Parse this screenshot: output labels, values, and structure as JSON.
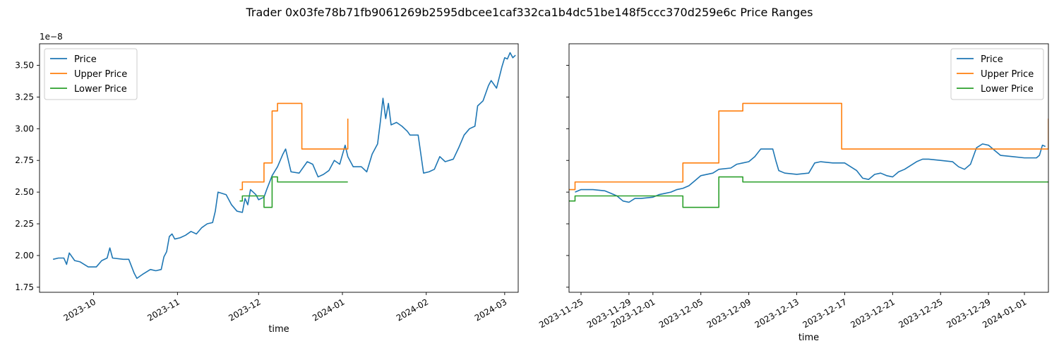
{
  "figure": {
    "title": "Trader 0x03fe78b71fb9061269b2595dbcee1caf332ca1b4dc51be148f5ccc370d259e6c Price Ranges"
  },
  "colors": {
    "price": "#1f77b4",
    "upper": "#ff7f0e",
    "lower": "#2ca02c"
  },
  "chart_data": [
    {
      "type": "line",
      "xlabel": "time",
      "ylabel": "",
      "y_scale_note": "1e−8",
      "xlim": [
        "2023-09-11",
        "2024-03-06"
      ],
      "ylim": [
        1.71,
        3.67
      ],
      "x_ticks": [
        "2023-10-01",
        "2023-11-01",
        "2023-12-01",
        "2024-01-01",
        "2024-02-01",
        "2024-03-01"
      ],
      "x_tick_labels": [
        "2023-10",
        "2023-11",
        "2023-12",
        "2024-01",
        "2024-02",
        "2024-03"
      ],
      "y_ticks": [
        1.75,
        2.0,
        2.25,
        2.5,
        2.75,
        3.0,
        3.25,
        3.5
      ],
      "y_tick_labels": [
        "1.75",
        "2.00",
        "2.25",
        "2.50",
        "2.75",
        "3.00",
        "3.25",
        "3.50"
      ],
      "legend": {
        "location": "upper-left",
        "entries": [
          "Price",
          "Upper Price",
          "Lower Price"
        ]
      },
      "series": [
        {
          "name": "Price",
          "points": [
            [
              "2023-09-16",
              1.97
            ],
            [
              "2023-09-18",
              1.98
            ],
            [
              "2023-09-20",
              1.98
            ],
            [
              "2023-09-21",
              1.93
            ],
            [
              "2023-09-22",
              2.02
            ],
            [
              "2023-09-24",
              1.96
            ],
            [
              "2023-09-26",
              1.95
            ],
            [
              "2023-09-29",
              1.91
            ],
            [
              "2023-10-02",
              1.91
            ],
            [
              "2023-10-04",
              1.96
            ],
            [
              "2023-10-06",
              1.98
            ],
            [
              "2023-10-07",
              2.06
            ],
            [
              "2023-10-08",
              1.98
            ],
            [
              "2023-10-12",
              1.97
            ],
            [
              "2023-10-14",
              1.97
            ],
            [
              "2023-10-16",
              1.86
            ],
            [
              "2023-10-17",
              1.82
            ],
            [
              "2023-10-19",
              1.85
            ],
            [
              "2023-10-22",
              1.89
            ],
            [
              "2023-10-24",
              1.88
            ],
            [
              "2023-10-26",
              1.89
            ],
            [
              "2023-10-27",
              1.99
            ],
            [
              "2023-10-28",
              2.03
            ],
            [
              "2023-10-29",
              2.15
            ],
            [
              "2023-10-30",
              2.17
            ],
            [
              "2023-10-31",
              2.13
            ],
            [
              "2023-11-02",
              2.14
            ],
            [
              "2023-11-04",
              2.16
            ],
            [
              "2023-11-06",
              2.19
            ],
            [
              "2023-11-08",
              2.17
            ],
            [
              "2023-11-10",
              2.22
            ],
            [
              "2023-11-12",
              2.25
            ],
            [
              "2023-11-14",
              2.26
            ],
            [
              "2023-11-15",
              2.35
            ],
            [
              "2023-11-16",
              2.5
            ],
            [
              "2023-11-19",
              2.48
            ],
            [
              "2023-11-21",
              2.4
            ],
            [
              "2023-11-23",
              2.35
            ],
            [
              "2023-11-25",
              2.34
            ],
            [
              "2023-11-26",
              2.45
            ],
            [
              "2023-11-27",
              2.4
            ],
            [
              "2023-11-28",
              2.52
            ],
            [
              "2023-11-30",
              2.48
            ],
            [
              "2023-12-01",
              2.44
            ],
            [
              "2023-12-03",
              2.46
            ],
            [
              "2023-12-04",
              2.52
            ],
            [
              "2023-12-06",
              2.63
            ],
            [
              "2023-12-08",
              2.7
            ],
            [
              "2023-12-10",
              2.8
            ],
            [
              "2023-12-11",
              2.84
            ],
            [
              "2023-12-13",
              2.66
            ],
            [
              "2023-12-16",
              2.65
            ],
            [
              "2023-12-19",
              2.74
            ],
            [
              "2023-12-21",
              2.72
            ],
            [
              "2023-12-23",
              2.62
            ],
            [
              "2023-12-25",
              2.64
            ],
            [
              "2023-12-27",
              2.67
            ],
            [
              "2023-12-29",
              2.75
            ],
            [
              "2023-12-31",
              2.72
            ],
            [
              "2024-01-02",
              2.87
            ],
            [
              "2024-01-03",
              2.78
            ],
            [
              "2024-01-05",
              2.7
            ],
            [
              "2024-01-08",
              2.7
            ],
            [
              "2024-01-10",
              2.66
            ],
            [
              "2024-01-12",
              2.8
            ],
            [
              "2024-01-14",
              2.88
            ],
            [
              "2024-01-15",
              3.05
            ],
            [
              "2024-01-16",
              3.24
            ],
            [
              "2024-01-17",
              3.08
            ],
            [
              "2024-01-18",
              3.2
            ],
            [
              "2024-01-19",
              3.03
            ],
            [
              "2024-01-21",
              3.05
            ],
            [
              "2024-01-23",
              3.02
            ],
            [
              "2024-01-25",
              2.98
            ],
            [
              "2024-01-26",
              2.95
            ],
            [
              "2024-01-29",
              2.95
            ],
            [
              "2024-01-31",
              2.65
            ],
            [
              "2024-02-02",
              2.66
            ],
            [
              "2024-02-04",
              2.68
            ],
            [
              "2024-02-06",
              2.78
            ],
            [
              "2024-02-08",
              2.74
            ],
            [
              "2024-02-11",
              2.76
            ],
            [
              "2024-02-13",
              2.85
            ],
            [
              "2024-02-15",
              2.95
            ],
            [
              "2024-02-17",
              3.0
            ],
            [
              "2024-02-19",
              3.02
            ],
            [
              "2024-02-20",
              3.18
            ],
            [
              "2024-02-22",
              3.22
            ],
            [
              "2024-02-24",
              3.34
            ],
            [
              "2024-02-25",
              3.38
            ],
            [
              "2024-02-27",
              3.32
            ],
            [
              "2024-02-29",
              3.49
            ],
            [
              "2024-03-01",
              3.56
            ],
            [
              "2024-03-02",
              3.55
            ],
            [
              "2024-03-03",
              3.6
            ],
            [
              "2024-03-04",
              3.56
            ],
            [
              "2024-03-05",
              3.58
            ]
          ]
        },
        {
          "name": "Upper Price",
          "points": [
            [
              "2023-11-24",
              2.52
            ],
            [
              "2023-11-25",
              2.52
            ],
            [
              "2023-11-25",
              2.58
            ],
            [
              "2023-12-03",
              2.58
            ],
            [
              "2023-12-03",
              2.73
            ],
            [
              "2023-12-06",
              2.73
            ],
            [
              "2023-12-06",
              3.14
            ],
            [
              "2023-12-08",
              3.14
            ],
            [
              "2023-12-08",
              3.2
            ],
            [
              "2023-12-17",
              3.2
            ],
            [
              "2023-12-17",
              2.84
            ],
            [
              "2024-01-03",
              2.84
            ],
            [
              "2024-01-03",
              3.08
            ]
          ]
        },
        {
          "name": "Lower Price",
          "points": [
            [
              "2023-11-24",
              2.43
            ],
            [
              "2023-11-25",
              2.43
            ],
            [
              "2023-11-25",
              2.47
            ],
            [
              "2023-12-03",
              2.47
            ],
            [
              "2023-12-03",
              2.38
            ],
            [
              "2023-12-06",
              2.38
            ],
            [
              "2023-12-06",
              2.62
            ],
            [
              "2023-12-08",
              2.62
            ],
            [
              "2023-12-08",
              2.58
            ],
            [
              "2024-01-03",
              2.58
            ]
          ]
        }
      ]
    },
    {
      "type": "line",
      "xlabel": "time",
      "ylabel": "",
      "xlim": [
        "2023-11-24",
        "2024-01-03"
      ],
      "ylim": [
        1.71,
        3.67
      ],
      "shared_y": true,
      "x_ticks": [
        "2023-11-25",
        "2023-11-29",
        "2023-12-01",
        "2023-12-05",
        "2023-12-09",
        "2023-12-13",
        "2023-12-17",
        "2023-12-21",
        "2023-12-25",
        "2023-12-29",
        "2024-01-01"
      ],
      "x_tick_labels": [
        "2023-11-25",
        "2023-11-29",
        "2023-12-01",
        "2023-12-05",
        "2023-12-09",
        "2023-12-13",
        "2023-12-17",
        "2023-12-21",
        "2023-12-25",
        "2023-12-29",
        "2024-01-01"
      ],
      "legend": {
        "location": "upper-right",
        "entries": [
          "Price",
          "Upper Price",
          "Lower Price"
        ]
      },
      "series": [
        {
          "name": "Price",
          "points": [
            [
              "2023-11-24 12:00",
              2.5
            ],
            [
              "2023-11-25 00:00",
              2.52
            ],
            [
              "2023-11-26 00:00",
              2.52
            ],
            [
              "2023-11-27 00:00",
              2.51
            ],
            [
              "2023-11-27 12:00",
              2.49
            ],
            [
              "2023-11-28 00:00",
              2.47
            ],
            [
              "2023-11-28 12:00",
              2.43
            ],
            [
              "2023-11-29 00:00",
              2.42
            ],
            [
              "2023-11-29 12:00",
              2.45
            ],
            [
              "2023-11-30 00:00",
              2.45
            ],
            [
              "2023-12-01 00:00",
              2.46
            ],
            [
              "2023-12-01 12:00",
              2.48
            ],
            [
              "2023-12-02 00:00",
              2.49
            ],
            [
              "2023-12-02 12:00",
              2.5
            ],
            [
              "2023-12-03 00:00",
              2.52
            ],
            [
              "2023-12-03 12:00",
              2.53
            ],
            [
              "2023-12-04 00:00",
              2.55
            ],
            [
              "2023-12-04 12:00",
              2.59
            ],
            [
              "2023-12-05 00:00",
              2.63
            ],
            [
              "2023-12-06 00:00",
              2.65
            ],
            [
              "2023-12-06 12:00",
              2.68
            ],
            [
              "2023-12-07 12:00",
              2.69
            ],
            [
              "2023-12-08 00:00",
              2.72
            ],
            [
              "2023-12-08 12:00",
              2.73
            ],
            [
              "2023-12-09 00:00",
              2.74
            ],
            [
              "2023-12-09 12:00",
              2.78
            ],
            [
              "2023-12-10 00:00",
              2.84
            ],
            [
              "2023-12-11 00:00",
              2.84
            ],
            [
              "2023-12-11 06:00",
              2.75
            ],
            [
              "2023-12-11 12:00",
              2.67
            ],
            [
              "2023-12-12 00:00",
              2.65
            ],
            [
              "2023-12-13 00:00",
              2.64
            ],
            [
              "2023-12-14 00:00",
              2.65
            ],
            [
              "2023-12-14 12:00",
              2.73
            ],
            [
              "2023-12-15 00:00",
              2.74
            ],
            [
              "2023-12-16 00:00",
              2.73
            ],
            [
              "2023-12-17 00:00",
              2.73
            ],
            [
              "2023-12-17 12:00",
              2.7
            ],
            [
              "2023-12-18 00:00",
              2.67
            ],
            [
              "2023-12-18 12:00",
              2.61
            ],
            [
              "2023-12-19 00:00",
              2.6
            ],
            [
              "2023-12-19 12:00",
              2.64
            ],
            [
              "2023-12-20 00:00",
              2.65
            ],
            [
              "2023-12-20 12:00",
              2.63
            ],
            [
              "2023-12-21 00:00",
              2.62
            ],
            [
              "2023-12-21 12:00",
              2.66
            ],
            [
              "2023-12-22 00:00",
              2.68
            ],
            [
              "2023-12-22 12:00",
              2.71
            ],
            [
              "2023-12-23 00:00",
              2.74
            ],
            [
              "2023-12-23 12:00",
              2.76
            ],
            [
              "2023-12-24 00:00",
              2.76
            ],
            [
              "2023-12-25 00:00",
              2.75
            ],
            [
              "2023-12-26 00:00",
              2.74
            ],
            [
              "2023-12-26 12:00",
              2.7
            ],
            [
              "2023-12-27 00:00",
              2.68
            ],
            [
              "2023-12-27 12:00",
              2.72
            ],
            [
              "2023-12-28 00:00",
              2.85
            ],
            [
              "2023-12-28 12:00",
              2.88
            ],
            [
              "2023-12-29 00:00",
              2.87
            ],
            [
              "2023-12-29 12:00",
              2.83
            ],
            [
              "2023-12-30 00:00",
              2.79
            ],
            [
              "2023-12-31 00:00",
              2.78
            ],
            [
              "2024-01-01 00:00",
              2.77
            ],
            [
              "2024-01-02 00:00",
              2.77
            ],
            [
              "2024-01-02 06:00",
              2.79
            ],
            [
              "2024-01-02 12:00",
              2.87
            ],
            [
              "2024-01-02 18:00",
              2.86
            ]
          ]
        },
        {
          "name": "Upper Price",
          "points": [
            [
              "2023-11-24 00:00",
              2.52
            ],
            [
              "2023-11-24 12:00",
              2.52
            ],
            [
              "2023-11-24 12:00",
              2.58
            ],
            [
              "2023-12-03 12:00",
              2.58
            ],
            [
              "2023-12-03 12:00",
              2.73
            ],
            [
              "2023-12-06 12:00",
              2.73
            ],
            [
              "2023-12-06 12:00",
              3.14
            ],
            [
              "2023-12-08 12:00",
              3.14
            ],
            [
              "2023-12-08 12:00",
              3.2
            ],
            [
              "2023-12-16 18:00",
              3.2
            ],
            [
              "2023-12-16 18:00",
              2.84
            ],
            [
              "2024-01-03 00:00",
              2.84
            ],
            [
              "2024-01-03 00:00",
              3.08
            ]
          ]
        },
        {
          "name": "Lower Price",
          "points": [
            [
              "2023-11-24 00:00",
              2.43
            ],
            [
              "2023-11-24 12:00",
              2.43
            ],
            [
              "2023-11-24 12:00",
              2.47
            ],
            [
              "2023-12-03 12:00",
              2.47
            ],
            [
              "2023-12-03 12:00",
              2.38
            ],
            [
              "2023-12-06 12:00",
              2.38
            ],
            [
              "2023-12-06 12:00",
              2.62
            ],
            [
              "2023-12-08 12:00",
              2.62
            ],
            [
              "2023-12-08 12:00",
              2.58
            ],
            [
              "2024-01-03 00:00",
              2.58
            ]
          ]
        }
      ]
    }
  ]
}
